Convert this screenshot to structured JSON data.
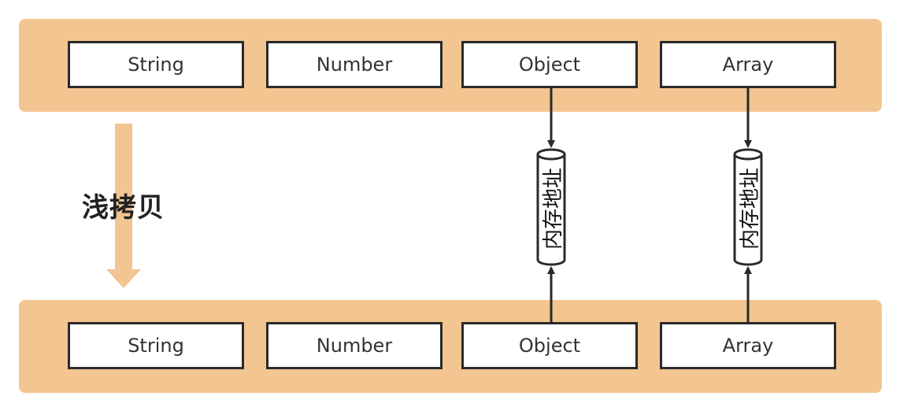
{
  "top_row": [
    "String",
    "Number",
    "Object",
    "Array"
  ],
  "bottom_row": [
    "String",
    "Number",
    "Object",
    "Array"
  ],
  "cylinders": [
    "内存地址",
    "内存地址"
  ],
  "copy_label": "浅拷贝",
  "colors": {
    "band": "#f3c591",
    "arrow": "#f3c591",
    "stroke": "#2a2a2a"
  }
}
